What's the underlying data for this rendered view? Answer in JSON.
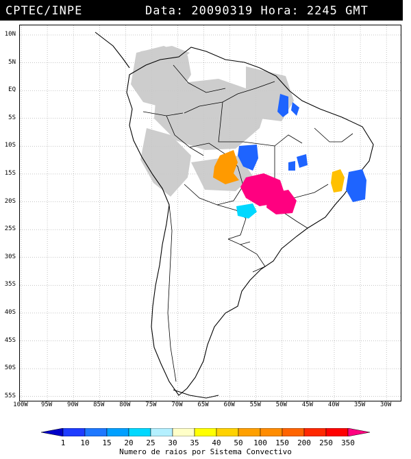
{
  "header": {
    "left_text": "CPTEC/INPE",
    "right_text": "Data: 20090319 Hora: 2245 GMT"
  },
  "map": {
    "lat_ticks": [
      "10N",
      "5N",
      "EQ",
      "5S",
      "10S",
      "15S",
      "20S",
      "25S",
      "30S",
      "35S",
      "40S",
      "45S",
      "50S",
      "55S"
    ],
    "lon_ticks": [
      "100W",
      "95W",
      "90W",
      "85W",
      "80W",
      "75W",
      "70W",
      "65W",
      "60W",
      "55W",
      "50W",
      "45W",
      "40W",
      "35W",
      "30W"
    ],
    "land_color": "#000000",
    "cloud_color": "#c8c8c8",
    "storm_clusters": [
      {
        "name": "north-coast-cluster",
        "color": "#1e64ff"
      },
      {
        "name": "mato-grosso-orange",
        "color": "#ff9a00"
      },
      {
        "name": "central-blue-cluster",
        "color": "#1e64ff"
      },
      {
        "name": "central-magenta-cluster",
        "color": "#ff0080"
      },
      {
        "name": "southeast-magenta-cluster",
        "color": "#ff0080"
      },
      {
        "name": "cyan-cluster",
        "color": "#00d8ff"
      },
      {
        "name": "bahia-yellow-cluster",
        "color": "#ffc000"
      },
      {
        "name": "atlantic-blue-cluster",
        "color": "#1e64ff"
      },
      {
        "name": "minas-blue-cluster",
        "color": "#1e64ff"
      },
      {
        "name": "parana-small-blue",
        "color": "#1e64ff"
      }
    ]
  },
  "colorbar": {
    "labels": [
      "1",
      "10",
      "15",
      "20",
      "25",
      "30",
      "35",
      "40",
      "50",
      "100",
      "150",
      "200",
      "250",
      "350"
    ],
    "colors": [
      "#0000c8",
      "#1e3cff",
      "#1e78ff",
      "#00a0ff",
      "#00d8ff",
      "#b4f0ff",
      "#ffffc8",
      "#ffff00",
      "#ffd200",
      "#ffa000",
      "#ff8c00",
      "#ff6400",
      "#ff2800",
      "#ff0000",
      "#ff0080"
    ],
    "caption": "Numero de raios por Sistema Convectivo"
  }
}
